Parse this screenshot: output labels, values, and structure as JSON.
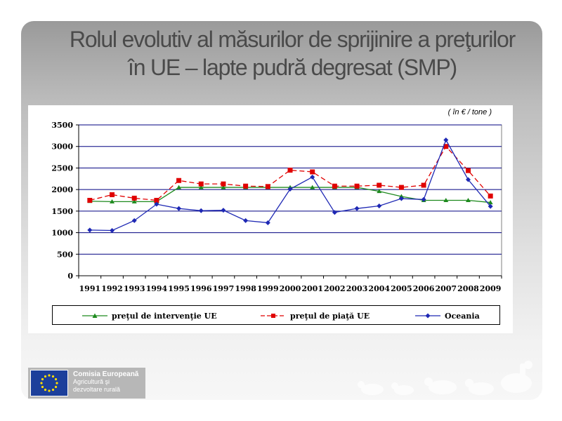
{
  "slide": {
    "title_line1": "Rolul evolutiv al măsurilor de sprijinire a preţurilor",
    "title_line2": "în UE – lapte pudră degresat (SMP)",
    "unit": "( în € / tone )"
  },
  "logo": {
    "line1": "Comisia Europeană",
    "line2": "Agricultură şi",
    "line3": "dezvoltare rurală",
    "flag_icon": "eu-flag-icon"
  },
  "colors": {
    "intervention": "#1e8a1e",
    "market": "#e00000",
    "oceania": "#1e28b4",
    "gridline": "#000080"
  },
  "chart_data": {
    "type": "line",
    "title": "",
    "xlabel": "",
    "ylabel": "",
    "ylim": [
      0,
      3500
    ],
    "yticks": [
      0,
      500,
      1000,
      1500,
      2000,
      2500,
      3000,
      3500
    ],
    "grid": true,
    "legend_position": "bottom",
    "categories": [
      "1991",
      "1992",
      "1993",
      "1994",
      "1995",
      "1996",
      "1997",
      "1998",
      "1999",
      "2000",
      "2001",
      "2002",
      "2003",
      "2004",
      "2005",
      "2006",
      "2007",
      "2008",
      "2009"
    ],
    "series": [
      {
        "name": "preţul de intervenţie UE",
        "color": "#1e8a1e",
        "marker": "triangle",
        "dash": "solid",
        "values": [
          1730,
          1720,
          1720,
          1720,
          2050,
          2050,
          2050,
          2050,
          2050,
          2050,
          2050,
          2050,
          2050,
          1960,
          1840,
          1750,
          1750,
          1750,
          1700
        ]
      },
      {
        "name": "preţul de piaţă UE",
        "color": "#e00000",
        "marker": "square",
        "dash": "dashed",
        "values": [
          1750,
          1880,
          1800,
          1750,
          2210,
          2130,
          2130,
          2080,
          2070,
          2450,
          2410,
          2080,
          2080,
          2100,
          2050,
          2100,
          3000,
          2440,
          1850
        ]
      },
      {
        "name": "Oceania",
        "color": "#1e28b4",
        "marker": "diamond",
        "dash": "solid",
        "values": [
          1060,
          1050,
          1280,
          1660,
          1560,
          1510,
          1520,
          1280,
          1230,
          2010,
          2290,
          1470,
          1560,
          1620,
          1790,
          1770,
          3150,
          2230,
          1610
        ]
      }
    ]
  }
}
